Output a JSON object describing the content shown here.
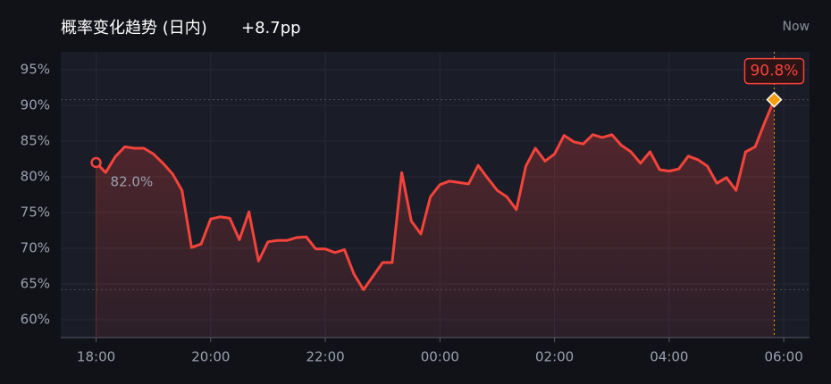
{
  "chart_data": {
    "type": "line",
    "title": "概率变化趋势 (日内)",
    "subtitle": "+8.7pp",
    "status": "Now",
    "color": "#f4433a",
    "marker_color": "#f59e0b",
    "x": [
      "18:00",
      "18:10",
      "18:20",
      "18:30",
      "18:40",
      "18:50",
      "19:00",
      "19:10",
      "19:20",
      "19:30",
      "19:40",
      "19:50",
      "20:00",
      "20:10",
      "20:20",
      "20:30",
      "20:40",
      "20:50",
      "21:00",
      "21:10",
      "21:20",
      "21:30",
      "21:40",
      "21:50",
      "22:00",
      "22:10",
      "22:20",
      "22:30",
      "22:40",
      "22:50",
      "23:00",
      "23:10",
      "23:20",
      "23:30",
      "23:40",
      "23:50",
      "00:00",
      "00:10",
      "00:20",
      "00:30",
      "00:40",
      "00:50",
      "01:00",
      "01:10",
      "01:20",
      "01:30",
      "01:40",
      "01:50",
      "02:00",
      "02:10",
      "02:20",
      "02:30",
      "02:40",
      "02:50",
      "03:00",
      "03:10",
      "03:20",
      "03:30",
      "03:40",
      "03:50",
      "04:00",
      "04:10",
      "04:20",
      "04:30",
      "04:40",
      "04:50",
      "05:00",
      "05:10",
      "05:20",
      "05:30",
      "05:40",
      "05:50"
    ],
    "values": [
      82.0,
      80.6,
      82.8,
      84.2,
      84.0,
      84.0,
      83.2,
      81.9,
      80.4,
      78.1,
      70.1,
      70.6,
      74.1,
      74.4,
      74.2,
      71.2,
      75.1,
      68.2,
      70.9,
      71.1,
      71.1,
      71.5,
      71.6,
      69.9,
      69.9,
      69.4,
      69.8,
      66.4,
      64.2,
      66.1,
      68.0,
      68.0,
      80.6,
      73.8,
      72.0,
      77.2,
      78.9,
      79.4,
      79.2,
      79.0,
      81.6,
      79.8,
      78.1,
      77.2,
      75.4,
      81.5,
      84.0,
      82.2,
      83.2,
      85.8,
      84.9,
      84.6,
      85.9,
      85.5,
      85.9,
      84.4,
      83.5,
      81.9,
      83.5,
      81.0,
      80.8,
      81.1,
      82.9,
      82.4,
      81.5,
      79.1,
      79.9,
      78.1,
      83.5,
      84.2,
      87.6,
      90.8
    ],
    "value_labels": [
      "82.0%",
      null,
      null,
      null,
      null,
      null,
      null,
      null,
      null,
      null,
      null,
      null,
      null,
      null,
      null,
      null,
      null,
      null,
      null,
      null,
      null,
      null,
      null,
      null,
      null,
      null,
      null,
      null,
      null,
      null,
      null,
      null,
      null,
      null,
      null,
      null,
      null,
      null,
      null,
      null,
      null,
      null,
      null,
      null,
      null,
      null,
      null,
      null,
      null,
      null,
      null,
      null,
      null,
      null,
      null,
      null,
      null,
      null,
      null,
      null,
      null,
      null,
      null,
      null,
      null,
      null,
      null,
      null,
      null,
      null,
      null,
      "90.8%"
    ],
    "xlim": [
      "17:23",
      "06:27"
    ],
    "xticks": [
      "18:00",
      "20:00",
      "22:00",
      "00:00",
      "02:00",
      "04:00",
      "06:00"
    ],
    "ylim": [
      57.5,
      97.5
    ],
    "yticks": [
      {
        "value": 60,
        "label": "60%"
      },
      {
        "value": 65,
        "label": "65%"
      },
      {
        "value": 70,
        "label": "70%"
      },
      {
        "value": 75,
        "label": "75%"
      },
      {
        "value": 80,
        "label": "80%"
      },
      {
        "value": 85,
        "label": "85%"
      },
      {
        "value": 90,
        "label": "90%"
      },
      {
        "value": 95,
        "label": "95%"
      }
    ],
    "grid": true
  }
}
